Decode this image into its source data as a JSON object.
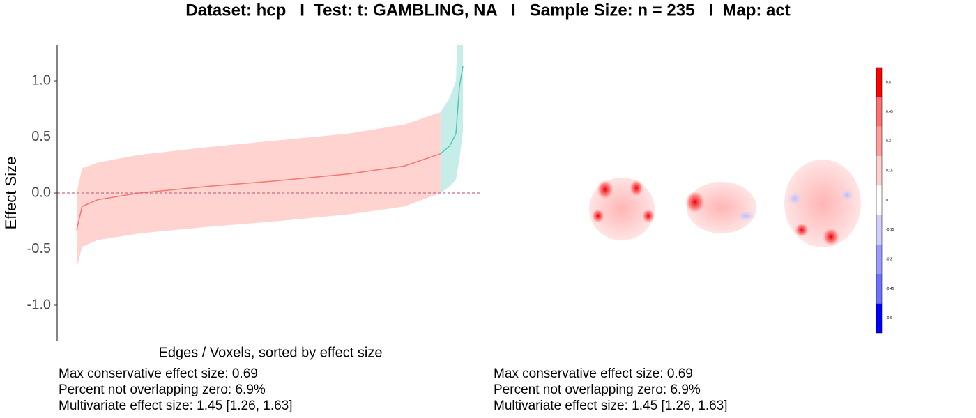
{
  "chart_data": [
    {
      "type": "band-line",
      "title": "Dataset: hcp   I  Test: t: GAMBLING, NA   I   Sample Size: n = 235   I  Map: act",
      "xlabel": "Edges / Voxels, sorted by effect size",
      "ylabel": "Effect Size",
      "xlim": [
        0,
        100
      ],
      "ylim": [
        -1.323,
        1.317
      ],
      "yticks": [
        {
          "value": -1,
          "label": "-1.0"
        },
        -0.5,
        {
          "value": 0,
          "label": "0.0"
        },
        0.5,
        {
          "value": 1,
          "label": "1.0"
        }
      ],
      "reference_line": 0,
      "series": [
        {
          "color": "#f8766d",
          "fill": "#ffd3d0",
          "x": [
            0,
            1.4,
            5.4,
            16.2,
            34.3,
            52.3,
            70.4,
            84.8,
            94.2
          ],
          "values": [
            -0.33,
            -0.12,
            -0.06,
            0.0,
            0.06,
            0.11,
            0.17,
            0.24,
            0.35
          ],
          "lower": [
            -0.67,
            -0.48,
            -0.42,
            -0.36,
            -0.3,
            -0.25,
            -0.19,
            -0.12,
            0.0
          ],
          "upper": [
            0.0,
            0.22,
            0.27,
            0.34,
            0.41,
            0.47,
            0.53,
            0.61,
            0.72
          ]
        },
        {
          "color": "#4dc8b8",
          "fill": "#c6ede8",
          "x": [
            94.2,
            96.6,
            98.2,
            99.1,
            100
          ],
          "values": [
            0.35,
            0.42,
            0.53,
            0.95,
            1.13
          ],
          "lower": [
            0.0,
            0.06,
            0.12,
            0.3,
            0.55
          ],
          "upper": [
            0.72,
            0.85,
            1.0,
            2.0,
            2.5
          ]
        }
      ],
      "annotations": [
        "Max conservative effect size: 0.69",
        "Percent not overlapping zero: 6.9%",
        "Multivariate effect size: 1.45 [1.26, 1.63]"
      ]
    },
    {
      "type": "colorbar",
      "ylim": [
        -0.675,
        0.675
      ],
      "yticks": [
        0.6,
        0.45,
        0.3,
        0.15,
        0,
        -0.15,
        -0.3,
        -0.45,
        -0.6
      ],
      "colors": [
        "#ff0000",
        "#ff7070",
        "#ff9c9c",
        "#ffcfcf",
        "#ffffff",
        "#cfcfff",
        "#9c9cff",
        "#7070ff",
        "#0000ff"
      ],
      "annotations": [
        "Max conservative effect size: 0.69",
        "Percent not overlapping zero: 6.9%",
        "Multivariate effect size: 1.45 [1.26, 1.63]"
      ]
    }
  ]
}
